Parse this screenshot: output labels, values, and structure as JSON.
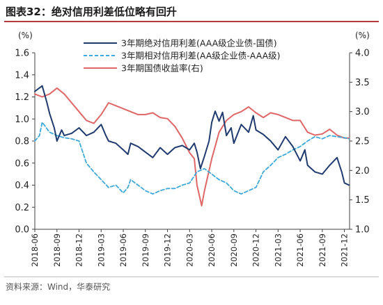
{
  "figure": {
    "title": "图表32：绝对信用利差低位略有回升",
    "source": "资料来源：Wind，华泰研究"
  },
  "chart_data": {
    "type": "line",
    "left_axis": {
      "unit_label": "(%)",
      "ylim": [
        0.0,
        1.6
      ],
      "ticks": [
        "0.0",
        "0.2",
        "0.4",
        "0.6",
        "0.8",
        "1.0",
        "1.2",
        "1.4",
        "1.6"
      ]
    },
    "right_axis": {
      "unit_label": "(%)",
      "ylim": [
        1.0,
        4.0
      ],
      "ticks": [
        "1.0",
        "1.5",
        "2.0",
        "2.5",
        "3.0",
        "3.5",
        "4.0"
      ]
    },
    "x_ticks": [
      "2018-06",
      "2018-09",
      "2018-12",
      "2019-03",
      "2019-06",
      "2019-09",
      "2019-12",
      "2020-03",
      "2020-06",
      "2020-09",
      "2020-12",
      "2021-03",
      "2021-06",
      "2021-09",
      "2021-12"
    ],
    "legend_position": "top-center",
    "grid": false,
    "series": [
      {
        "name": "3年期绝对信用利差(AAA级企业债-国债)",
        "axis": "left",
        "color": "#1f3a6e",
        "style": "solid",
        "points": [
          [
            "2018-06",
            1.25
          ],
          [
            "2018-07",
            1.3
          ],
          [
            "2018-07-20",
            1.15
          ],
          [
            "2018-08",
            1.05
          ],
          [
            "2018-08-20",
            0.92
          ],
          [
            "2018-09",
            0.8
          ],
          [
            "2018-09-20",
            0.9
          ],
          [
            "2018-10",
            0.85
          ],
          [
            "2018-11",
            0.87
          ],
          [
            "2018-12",
            0.92
          ],
          [
            "2019-01",
            0.85
          ],
          [
            "2019-02",
            0.88
          ],
          [
            "2019-03",
            0.95
          ],
          [
            "2019-03-20",
            0.85
          ],
          [
            "2019-04",
            0.8
          ],
          [
            "2019-05",
            0.78
          ],
          [
            "2019-06",
            0.72
          ],
          [
            "2019-06-20",
            0.68
          ],
          [
            "2019-07",
            0.78
          ],
          [
            "2019-08",
            0.75
          ],
          [
            "2019-09",
            0.7
          ],
          [
            "2019-10",
            0.65
          ],
          [
            "2019-11",
            0.74
          ],
          [
            "2019-12",
            0.68
          ],
          [
            "2020-01",
            0.74
          ],
          [
            "2020-02",
            0.76
          ],
          [
            "2020-03",
            0.72
          ],
          [
            "2020-03-20",
            0.78
          ],
          [
            "2020-04",
            0.7
          ],
          [
            "2020-04-15",
            0.55
          ],
          [
            "2020-05",
            0.66
          ],
          [
            "2020-05-20",
            0.8
          ],
          [
            "2020-06",
            0.97
          ],
          [
            "2020-06-15",
            1.07
          ],
          [
            "2020-07",
            0.98
          ],
          [
            "2020-07-15",
            1.06
          ],
          [
            "2020-08",
            0.85
          ],
          [
            "2020-08-20",
            0.92
          ],
          [
            "2020-09",
            0.78
          ],
          [
            "2020-10",
            0.95
          ],
          [
            "2020-11",
            0.88
          ],
          [
            "2020-11-20",
            1.03
          ],
          [
            "2020-12",
            0.9
          ],
          [
            "2021-01",
            0.86
          ],
          [
            "2021-02",
            0.8
          ],
          [
            "2021-03",
            0.72
          ],
          [
            "2021-04",
            0.84
          ],
          [
            "2021-05",
            0.75
          ],
          [
            "2021-06",
            0.62
          ],
          [
            "2021-06-20",
            0.72
          ],
          [
            "2021-07",
            0.58
          ],
          [
            "2021-08",
            0.52
          ],
          [
            "2021-09",
            0.5
          ],
          [
            "2021-10",
            0.58
          ],
          [
            "2021-11",
            0.65
          ],
          [
            "2021-11-20",
            0.52
          ],
          [
            "2021-12",
            0.42
          ],
          [
            "2021-12-20",
            0.4
          ]
        ]
      },
      {
        "name": "3年期相对信用利差(AA级企业债-AAA级)",
        "axis": "left",
        "color": "#3da8dc",
        "style": "dashed",
        "points": [
          [
            "2018-06",
            0.8
          ],
          [
            "2018-06-20",
            0.85
          ],
          [
            "2018-07",
            0.97
          ],
          [
            "2018-08",
            0.88
          ],
          [
            "2018-09",
            0.85
          ],
          [
            "2018-10",
            0.83
          ],
          [
            "2018-11",
            0.82
          ],
          [
            "2018-12",
            0.8
          ],
          [
            "2019-01",
            0.6
          ],
          [
            "2019-02",
            0.52
          ],
          [
            "2019-03",
            0.45
          ],
          [
            "2019-04",
            0.38
          ],
          [
            "2019-05",
            0.4
          ],
          [
            "2019-06",
            0.33
          ],
          [
            "2019-06-20",
            0.38
          ],
          [
            "2019-07",
            0.45
          ],
          [
            "2019-08",
            0.4
          ],
          [
            "2019-09",
            0.35
          ],
          [
            "2019-10",
            0.32
          ],
          [
            "2019-11",
            0.35
          ],
          [
            "2019-12",
            0.37
          ],
          [
            "2020-01",
            0.37
          ],
          [
            "2020-02",
            0.4
          ],
          [
            "2020-03",
            0.42
          ],
          [
            "2020-04",
            0.52
          ],
          [
            "2020-05",
            0.55
          ],
          [
            "2020-06",
            0.5
          ],
          [
            "2020-07",
            0.45
          ],
          [
            "2020-08",
            0.42
          ],
          [
            "2020-09",
            0.35
          ],
          [
            "2020-10",
            0.32
          ],
          [
            "2020-11",
            0.35
          ],
          [
            "2020-12",
            0.38
          ],
          [
            "2021-01",
            0.52
          ],
          [
            "2021-02",
            0.58
          ],
          [
            "2021-03",
            0.65
          ],
          [
            "2021-04",
            0.68
          ],
          [
            "2021-05",
            0.72
          ],
          [
            "2021-06",
            0.75
          ],
          [
            "2021-07",
            0.8
          ],
          [
            "2021-08",
            0.84
          ],
          [
            "2021-09",
            0.82
          ],
          [
            "2021-10",
            0.85
          ],
          [
            "2021-11",
            0.84
          ],
          [
            "2021-12",
            0.83
          ],
          [
            "2021-12-20",
            0.82
          ]
        ]
      },
      {
        "name": "3年期国债收益率(右)",
        "axis": "right",
        "color": "#e06666",
        "style": "solid",
        "points": [
          [
            "2018-06",
            3.3
          ],
          [
            "2018-07",
            3.25
          ],
          [
            "2018-08",
            3.3
          ],
          [
            "2018-09",
            3.4
          ],
          [
            "2018-10",
            3.3
          ],
          [
            "2018-11",
            3.15
          ],
          [
            "2018-12",
            3.0
          ],
          [
            "2019-01",
            2.85
          ],
          [
            "2019-02",
            2.8
          ],
          [
            "2019-03",
            2.95
          ],
          [
            "2019-04",
            3.15
          ],
          [
            "2019-05",
            3.1
          ],
          [
            "2019-06",
            3.05
          ],
          [
            "2019-07",
            3.0
          ],
          [
            "2019-08",
            2.95
          ],
          [
            "2019-09",
            2.95
          ],
          [
            "2019-10",
            2.98
          ],
          [
            "2019-11",
            2.9
          ],
          [
            "2019-12",
            2.88
          ],
          [
            "2020-01",
            2.75
          ],
          [
            "2020-02",
            2.55
          ],
          [
            "2020-03",
            2.3
          ],
          [
            "2020-03-20",
            2.2
          ],
          [
            "2020-04",
            1.75
          ],
          [
            "2020-04-20",
            1.4
          ],
          [
            "2020-05",
            1.65
          ],
          [
            "2020-06",
            2.2
          ],
          [
            "2020-07",
            2.65
          ],
          [
            "2020-08",
            2.85
          ],
          [
            "2020-09",
            2.95
          ],
          [
            "2020-10",
            3.0
          ],
          [
            "2020-11",
            3.08
          ],
          [
            "2020-12",
            2.98
          ],
          [
            "2021-01",
            2.9
          ],
          [
            "2021-02",
            2.98
          ],
          [
            "2021-03",
            2.95
          ],
          [
            "2021-04",
            2.9
          ],
          [
            "2021-05",
            2.85
          ],
          [
            "2021-06",
            2.85
          ],
          [
            "2021-07",
            2.65
          ],
          [
            "2021-08",
            2.6
          ],
          [
            "2021-09",
            2.62
          ],
          [
            "2021-10",
            2.7
          ],
          [
            "2021-11",
            2.6
          ],
          [
            "2021-12",
            2.55
          ],
          [
            "2021-12-20",
            2.55
          ]
        ]
      }
    ]
  }
}
